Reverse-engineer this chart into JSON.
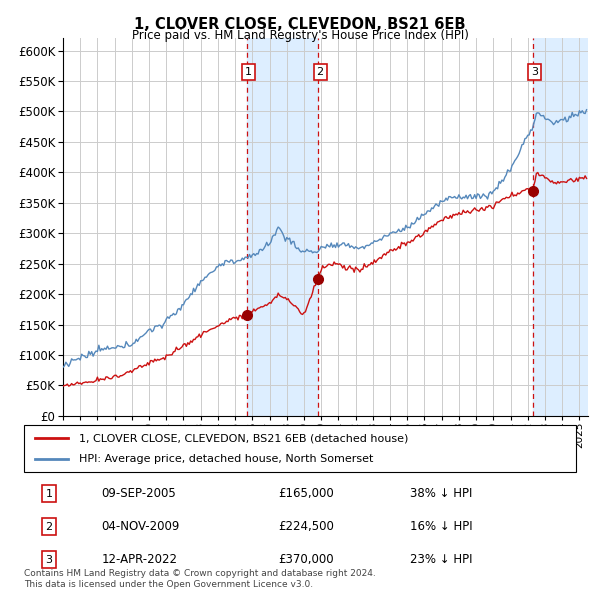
{
  "title": "1, CLOVER CLOSE, CLEVEDON, BS21 6EB",
  "subtitle": "Price paid vs. HM Land Registry's House Price Index (HPI)",
  "ylim": [
    0,
    620000
  ],
  "yticks": [
    0,
    50000,
    100000,
    150000,
    200000,
    250000,
    300000,
    350000,
    400000,
    450000,
    500000,
    550000,
    600000
  ],
  "xlim_start": 1995.0,
  "xlim_end": 2025.5,
  "hpi_color": "#5588bb",
  "price_color": "#cc1111",
  "sale_dates": [
    2005.69,
    2009.84,
    2022.28
  ],
  "sale_prices": [
    165000,
    224500,
    370000
  ],
  "sale_labels": [
    "1",
    "2",
    "3"
  ],
  "sale_date_strs": [
    "09-SEP-2005",
    "04-NOV-2009",
    "12-APR-2022"
  ],
  "sale_price_strs": [
    "£165,000",
    "£224,500",
    "£370,000"
  ],
  "sale_hpi_strs": [
    "38% ↓ HPI",
    "16% ↓ HPI",
    "23% ↓ HPI"
  ],
  "legend_price_label": "1, CLOVER CLOSE, CLEVEDON, BS21 6EB (detached house)",
  "legend_hpi_label": "HPI: Average price, detached house, North Somerset",
  "footer": "Contains HM Land Registry data © Crown copyright and database right 2024.\nThis data is licensed under the Open Government Licence v3.0.",
  "shade_color": "#ddeeff",
  "grid_color": "#cccccc"
}
